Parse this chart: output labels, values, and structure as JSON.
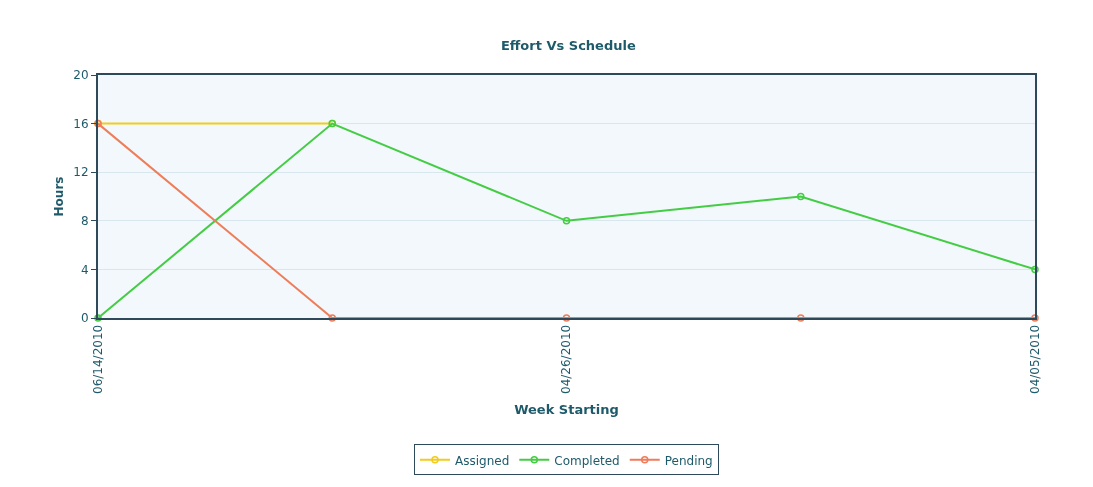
{
  "chart_data": {
    "type": "line",
    "title": "Effort Vs Schedule",
    "xlabel": "Week Starting",
    "ylabel": "Hours",
    "categories": [
      "06/14/2010",
      null,
      "04/26/2010",
      null,
      "04/05/2010"
    ],
    "series": [
      {
        "name": "Assigned",
        "color": "#f2cc1a",
        "values": [
          16,
          16,
          null,
          null,
          null
        ]
      },
      {
        "name": "Completed",
        "color": "#44cc44",
        "values": [
          0,
          16,
          8,
          10,
          4
        ]
      },
      {
        "name": "Pending",
        "color": "#ee7d5a",
        "values": [
          16,
          0,
          0,
          0,
          0
        ]
      }
    ],
    "ylim": [
      0,
      20
    ],
    "yticks": [
      0,
      4,
      8,
      12,
      16,
      20
    ],
    "grid": "y",
    "legend": "bottom",
    "marker": "circle",
    "line_style": "solid"
  }
}
